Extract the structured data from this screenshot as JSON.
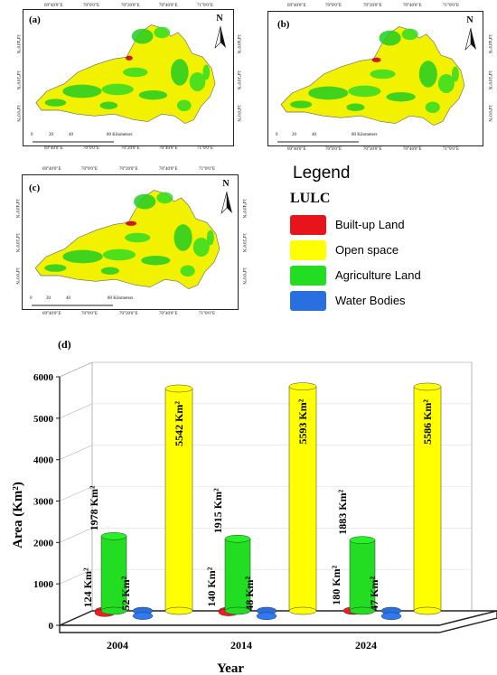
{
  "maps": [
    {
      "letter": "(a)",
      "north": "N",
      "scale_ticks": [
        "0",
        "20",
        "40",
        "80 Kilometers"
      ],
      "top_ticks": [
        "69°40'0\"E",
        "70°0'0\"E",
        "70°20'0\"E",
        "70°40'0\"E",
        "71°0'0\"E"
      ],
      "bottom_ticks": [
        "69°40'0\"E",
        "70°0'0\"E",
        "70°20'0\"E",
        "70°40'0\"E",
        "71°0'0\"E"
      ],
      "side_ticks": [
        "34°40'0\"N",
        "34°20'0\"N",
        "34°0'0\"N"
      ]
    },
    {
      "letter": "(b)",
      "north": "N",
      "scale_ticks": [
        "0",
        "20",
        "40",
        "80 Kilometers"
      ],
      "top_ticks": [
        "69°40'0\"E",
        "70°0'0\"E",
        "70°20'0\"E",
        "70°40'0\"E",
        "71°0'0\"E"
      ],
      "bottom_ticks": [
        "69°40'0\"E",
        "70°0'0\"E",
        "70°20'0\"E",
        "70°40'0\"E",
        "71°0'0\"E"
      ],
      "side_ticks": [
        "34°40'0\"N",
        "34°20'0\"N",
        "34°0'0\"N"
      ]
    },
    {
      "letter": "(c)",
      "north": "N",
      "scale_ticks": [
        "0",
        "20",
        "40",
        "80 Kilometers"
      ],
      "top_ticks": [
        "69°40'0\"E",
        "70°0'0\"E",
        "70°20'0\"E",
        "70°40'0\"E",
        "71°0'0\"E"
      ],
      "bottom_ticks": [
        "69°40'0\"E",
        "70°0'0\"E",
        "70°20'0\"E",
        "70°40'0\"E",
        "71°0'0\"E"
      ],
      "side_ticks": [
        "34°40'0\"N",
        "34°20'0\"N",
        "34°0'0\"N"
      ]
    }
  ],
  "legend": {
    "title": "Legend",
    "subtitle": "LULC",
    "items": [
      {
        "label": "Built-up Land",
        "color": "#e8141b"
      },
      {
        "label": "Open space",
        "color": "#ffff00"
      },
      {
        "label": "Agriculture Land",
        "color": "#22dd22"
      },
      {
        "label": "Water Bodies",
        "color": "#2a6fe0"
      }
    ]
  },
  "chart_data": {
    "type": "bar",
    "panel_label": "(d)",
    "xlabel": "Year",
    "ylabel": "Area (Km²)",
    "ylim": [
      0,
      6000
    ],
    "yticks": [
      "0",
      "1000",
      "2000",
      "3000",
      "4000",
      "5000",
      "6000"
    ],
    "categories": [
      "2004",
      "2014",
      "2024"
    ],
    "series": [
      {
        "color": "#e8141b",
        "values": [
          124,
          140,
          180
        ],
        "labels": [
          "124 Km²",
          "140 Km²",
          "180 Km²"
        ]
      },
      {
        "color": "#22dd22",
        "values": [
          1978,
          1915,
          1883
        ],
        "labels": [
          "1978 Km²",
          "1915 Km²",
          "1883 Km²"
        ]
      },
      {
        "color": "#2a6fe0",
        "values": [
          52,
          48,
          47
        ],
        "labels": [
          "52 Km²",
          "48 Km²",
          "47 Km²"
        ]
      },
      {
        "color": "#ffff00",
        "values": [
          5542,
          5593,
          5586
        ],
        "labels": [
          "5542 Km²",
          "5593 Km²",
          "5586 Km²"
        ]
      }
    ]
  }
}
